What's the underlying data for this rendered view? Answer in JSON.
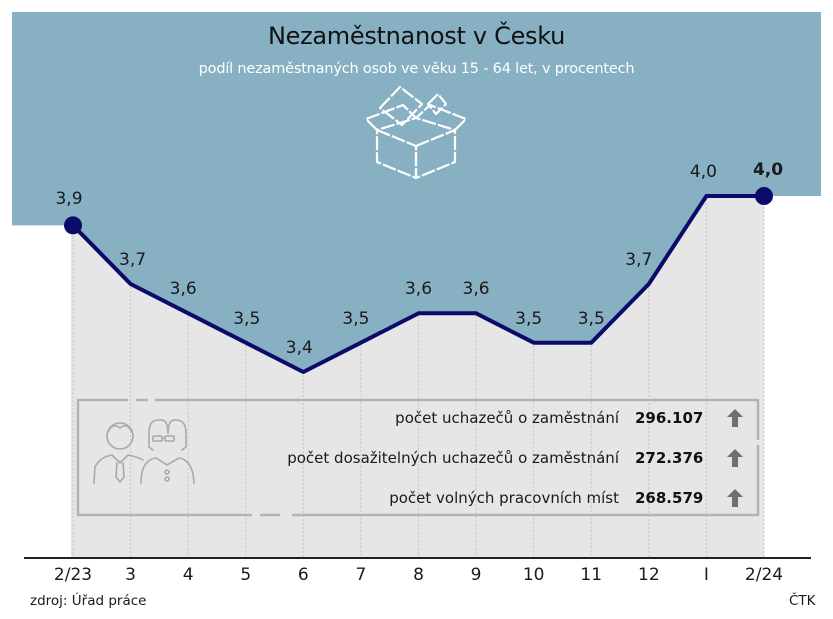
{
  "header": {
    "title": "Nezaměstnanost v Česku",
    "subtitle": "podíl nezaměstnaných osob ve věku 15 - 64 let, v procentech"
  },
  "colors": {
    "top_band": "#87b0c3",
    "plot_fill": "#e6e6e6",
    "line": "#0b0b6b",
    "axis": "#222222",
    "box_border": "#b3b3b3",
    "arrow": "#6f6f6f"
  },
  "chart_data": {
    "type": "line",
    "title": "Nezaměstnanost v Česku",
    "subtitle": "podíl nezaměstnaných osob ve věku 15 - 64 let, v procentech",
    "xlabel": "",
    "ylabel": "",
    "categories": [
      "2/23",
      "3",
      "4",
      "5",
      "6",
      "7",
      "8",
      "9",
      "10",
      "11",
      "12",
      "I",
      "2/24"
    ],
    "values": [
      3.9,
      3.7,
      3.6,
      3.5,
      3.4,
      3.5,
      3.6,
      3.6,
      3.5,
      3.5,
      3.7,
      4.0,
      4.0
    ],
    "value_labels": [
      "3,9",
      "3,7",
      "3,6",
      "3,5",
      "3,4",
      "3,5",
      "3,6",
      "3,6",
      "3,5",
      "3,5",
      "3,7",
      "4,0",
      "4,0"
    ],
    "highlighted_points": [
      0,
      12
    ],
    "grid": "dotted vertical lines at each month",
    "legend": "none"
  },
  "info_box": {
    "rows": [
      {
        "label": "počet uchazečů o zaměstnání",
        "value": "296.107",
        "trend": "up"
      },
      {
        "label": "počet dosažitelných uchazečů o zaměstnání",
        "value": "272.376",
        "trend": "up"
      },
      {
        "label": "počet volných pracovních míst",
        "value": "268.579",
        "trend": "up"
      }
    ]
  },
  "footer": {
    "source": "zdroj: Úřad práce",
    "credit": "ČTK"
  },
  "icons": {
    "box": "open-box-with-banknotes-icon",
    "people": "man-and-woman-icon",
    "arrow": "arrow-up-icon"
  }
}
